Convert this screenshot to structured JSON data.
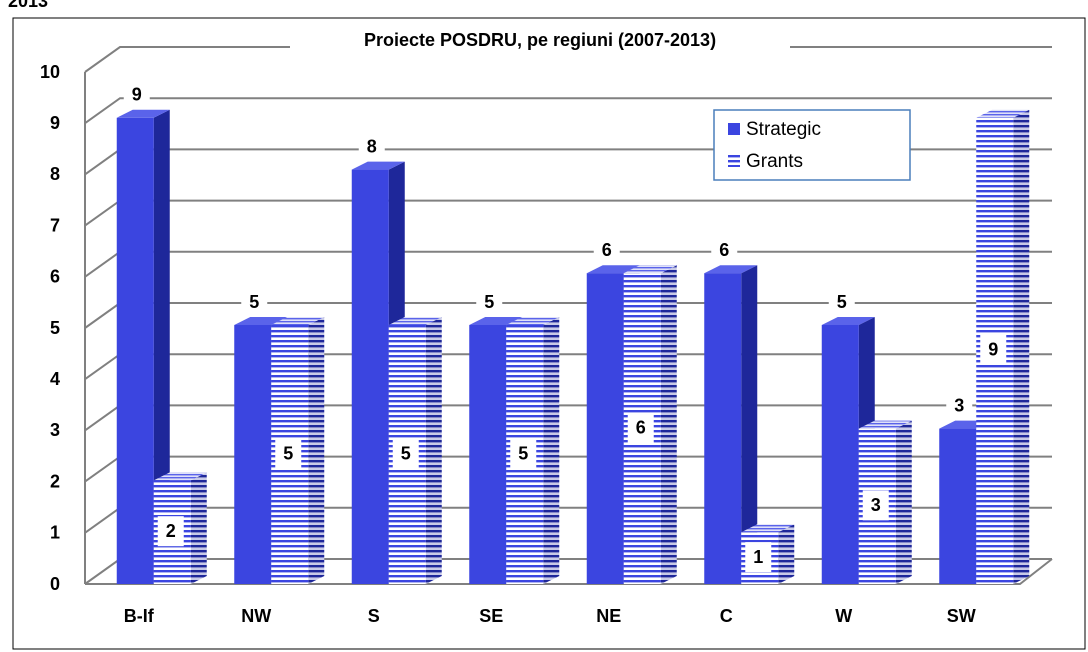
{
  "note": "2013",
  "chart_data": {
    "type": "bar3d",
    "title": "Proiecte POSDRU, pe regiuni (2007-2013)",
    "categories": [
      "B-If",
      "NW",
      "S",
      "SE",
      "NE",
      "C",
      "W",
      "SW"
    ],
    "series": [
      {
        "name": "Strategic",
        "color": "#3b45e0",
        "values": [
          9,
          5,
          8,
          5,
          6,
          6,
          5,
          3
        ]
      },
      {
        "name": "Grants",
        "color": "#3b45e0",
        "pattern": "horizontal-stripes",
        "values": [
          2,
          5,
          5,
          5,
          6,
          1,
          3,
          9
        ]
      }
    ],
    "ylim": [
      0,
      10
    ],
    "yticks": [
      0,
      1,
      2,
      3,
      4,
      5,
      6,
      7,
      8,
      9,
      10
    ],
    "grid": true
  }
}
